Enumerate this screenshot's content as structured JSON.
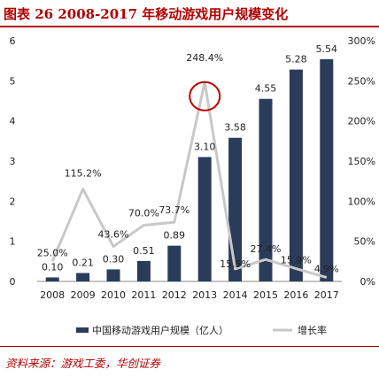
{
  "title": "图表 26   2008-2017 年移动游戏用户规模变化",
  "source": "资料来源：游戏工委，华创证券",
  "colors": {
    "bar": "#2b3c5a",
    "line": "#c8c8c8",
    "highlight": "#c00000",
    "title": "#b20000"
  },
  "chart_data": {
    "type": "bar+line",
    "categories": [
      "2008",
      "2009",
      "2010",
      "2011",
      "2012",
      "2013",
      "2014",
      "2015",
      "2016",
      "2017"
    ],
    "series": [
      {
        "name": "中国移动游戏用户规模（亿人）",
        "type": "bar",
        "axis": "left",
        "values": [
          0.1,
          0.21,
          0.3,
          0.51,
          0.89,
          3.1,
          3.58,
          4.55,
          5.28,
          5.54
        ],
        "labels": [
          "0.10",
          "0.21",
          "0.30",
          "0.51",
          "0.89",
          "3.10",
          "3.58",
          "4.55",
          "5.28",
          "5.54"
        ]
      },
      {
        "name": "增长率",
        "type": "line",
        "axis": "right",
        "values": [
          25.0,
          115.2,
          43.6,
          70.0,
          73.7,
          248.4,
          15.5,
          27.4,
          15.9,
          4.9
        ],
        "labels": [
          "25.0%",
          "115.2%",
          "43.6%",
          "70.0%",
          "73.7%",
          "248.4%",
          "15.5%",
          "27.4%",
          "15.9%",
          "4.9%"
        ]
      }
    ],
    "y_left": {
      "range": [
        0,
        6
      ],
      "ticks": [
        "0",
        "1",
        "2",
        "3",
        "4",
        "5",
        "6"
      ]
    },
    "y_right": {
      "range": [
        0,
        300
      ],
      "ticks": [
        "0%",
        "50%",
        "100%",
        "150%",
        "200%",
        "250%",
        "300%"
      ]
    },
    "highlight_category": "2013",
    "legend_position": "bottom",
    "grid": false
  }
}
